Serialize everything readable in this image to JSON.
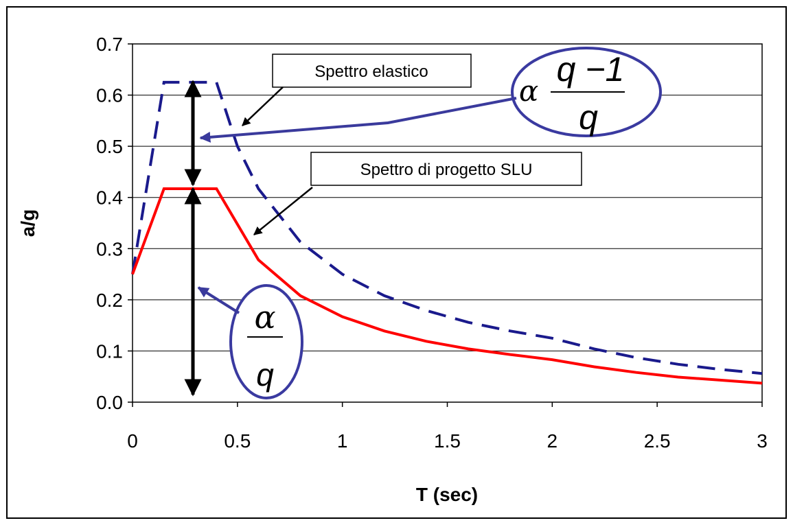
{
  "chart_data": {
    "type": "line",
    "title": "",
    "xlabel": "T (sec)",
    "ylabel": "a/g",
    "xlim": [
      0,
      3
    ],
    "ylim": [
      0,
      0.7
    ],
    "xticks": [
      "0",
      "0.5",
      "1",
      "1.5",
      "2",
      "2.5",
      "3"
    ],
    "yticks": [
      "0.0",
      "0.1",
      "0.2",
      "0.3",
      "0.4",
      "0.5",
      "0.6",
      "0.7"
    ],
    "grid": "horizontal",
    "series": [
      {
        "name": "Spettro elastico",
        "style": "dashed",
        "color": "#1a1a8c",
        "x": [
          0,
          0.15,
          0.4,
          0.5,
          0.6,
          0.8,
          1.0,
          1.2,
          1.4,
          1.6,
          1.8,
          2.0,
          2.2,
          2.4,
          2.6,
          2.8,
          3.0
        ],
        "y": [
          0.25,
          0.625,
          0.625,
          0.5,
          0.417,
          0.313,
          0.25,
          0.208,
          0.179,
          0.156,
          0.139,
          0.125,
          0.104,
          0.087,
          0.074,
          0.064,
          0.056
        ]
      },
      {
        "name": "Spettro di progetto SLU",
        "style": "solid",
        "color": "#ff0000",
        "x": [
          0,
          0.15,
          0.4,
          0.6,
          0.8,
          1.0,
          1.2,
          1.4,
          1.6,
          1.8,
          2.0,
          2.2,
          2.4,
          2.6,
          2.8,
          3.0
        ],
        "y": [
          0.25,
          0.417,
          0.417,
          0.278,
          0.208,
          0.167,
          0.139,
          0.119,
          0.104,
          0.093,
          0.083,
          0.069,
          0.058,
          0.049,
          0.043,
          0.037
        ]
      }
    ],
    "annotations": {
      "elastic_label": "Spettro elastico",
      "design_label": "Spettro di progetto SLU",
      "upper_formula": {
        "alpha": "α",
        "numerator": "q −1",
        "denominator": "q"
      },
      "lower_formula": {
        "numerator": "α",
        "denominator": "q"
      }
    }
  },
  "colors": {
    "elastic": "#1a1a8c",
    "design": "#ff0000",
    "annotation_arrow": "#3a3a9c",
    "ellipse": "#3a3aa0",
    "double_arrow": "#000000"
  }
}
